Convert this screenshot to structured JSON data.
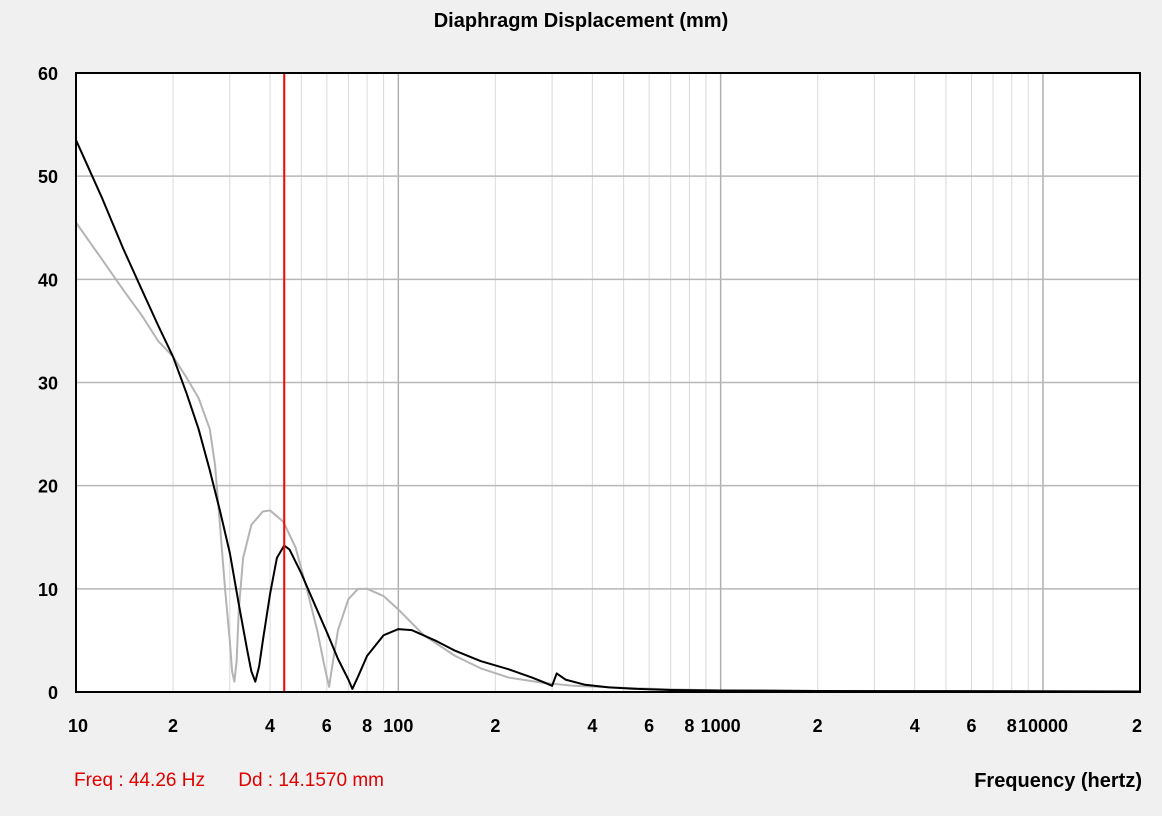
{
  "chart_data": {
    "type": "line",
    "title": "Diaphragm Displacement (mm)",
    "xlabel": "Frequency (hertz)",
    "ylabel": "",
    "x_scale": "log",
    "xlim": [
      10,
      20000
    ],
    "ylim": [
      0,
      60
    ],
    "grid": true,
    "y_ticks": [
      "0",
      "10",
      "20",
      "30",
      "40",
      "50",
      "60"
    ],
    "x_tick_labels": [
      {
        "value": 10,
        "label": "10"
      },
      {
        "value": 20,
        "label": "2"
      },
      {
        "value": 40,
        "label": "4"
      },
      {
        "value": 60,
        "label": "6"
      },
      {
        "value": 80,
        "label": "8"
      },
      {
        "value": 100,
        "label": "100"
      },
      {
        "value": 200,
        "label": "2"
      },
      {
        "value": 400,
        "label": "4"
      },
      {
        "value": 600,
        "label": "6"
      },
      {
        "value": 800,
        "label": "8"
      },
      {
        "value": 1000,
        "label": "1000"
      },
      {
        "value": 2000,
        "label": "2"
      },
      {
        "value": 4000,
        "label": "4"
      },
      {
        "value": 6000,
        "label": "6"
      },
      {
        "value": 8000,
        "label": "8"
      },
      {
        "value": 10000,
        "label": "10000"
      },
      {
        "value": 20000,
        "label": "2"
      }
    ],
    "series": [
      {
        "color": "#000000",
        "points": [
          [
            10,
            53.5
          ],
          [
            12,
            48
          ],
          [
            14,
            43
          ],
          [
            16,
            39
          ],
          [
            18,
            35.5
          ],
          [
            20,
            32.5
          ],
          [
            22,
            29
          ],
          [
            24,
            25.5
          ],
          [
            26,
            21.5
          ],
          [
            28,
            17.5
          ],
          [
            30,
            13.5
          ],
          [
            32,
            8.5
          ],
          [
            34,
            4
          ],
          [
            35,
            2
          ],
          [
            36,
            1
          ],
          [
            37,
            2.5
          ],
          [
            38,
            5
          ],
          [
            40,
            9.5
          ],
          [
            42,
            13
          ],
          [
            44.26,
            14.2
          ],
          [
            46,
            13.8
          ],
          [
            50,
            11.5
          ],
          [
            55,
            8.5
          ],
          [
            60,
            5.8
          ],
          [
            65,
            3.2
          ],
          [
            70,
            1.2
          ],
          [
            72,
            0.3
          ],
          [
            75,
            1.5
          ],
          [
            80,
            3.5
          ],
          [
            90,
            5.5
          ],
          [
            100,
            6.1
          ],
          [
            110,
            6.0
          ],
          [
            130,
            5.0
          ],
          [
            150,
            4.0
          ],
          [
            180,
            3.0
          ],
          [
            220,
            2.2
          ],
          [
            260,
            1.4
          ],
          [
            280,
            1.0
          ],
          [
            300,
            0.6
          ],
          [
            310,
            1.8
          ],
          [
            330,
            1.2
          ],
          [
            380,
            0.7
          ],
          [
            450,
            0.45
          ],
          [
            550,
            0.3
          ],
          [
            700,
            0.2
          ],
          [
            1000,
            0.15
          ],
          [
            2000,
            0.1
          ],
          [
            5000,
            0.08
          ],
          [
            20000,
            0.05
          ]
        ]
      },
      {
        "color": "#b4b4b4",
        "points": [
          [
            10,
            45.5
          ],
          [
            12,
            42
          ],
          [
            14,
            39
          ],
          [
            16,
            36.5
          ],
          [
            18,
            34
          ],
          [
            20,
            32.5
          ],
          [
            22,
            30.5
          ],
          [
            24,
            28.5
          ],
          [
            26,
            25.5
          ],
          [
            27,
            22
          ],
          [
            28,
            16
          ],
          [
            29,
            10
          ],
          [
            30,
            5
          ],
          [
            30.5,
            2
          ],
          [
            31,
            1
          ],
          [
            31.5,
            3
          ],
          [
            32,
            8
          ],
          [
            33,
            13
          ],
          [
            35,
            16.2
          ],
          [
            38,
            17.5
          ],
          [
            40,
            17.6
          ],
          [
            44,
            16.5
          ],
          [
            48,
            14
          ],
          [
            52,
            10
          ],
          [
            56,
            6
          ],
          [
            59,
            2.5
          ],
          [
            61,
            0.5
          ],
          [
            62,
            2
          ],
          [
            65,
            6
          ],
          [
            70,
            9
          ],
          [
            75,
            10
          ],
          [
            80,
            10
          ],
          [
            90,
            9.3
          ],
          [
            100,
            8
          ],
          [
            120,
            5.5
          ],
          [
            150,
            3.5
          ],
          [
            180,
            2.3
          ],
          [
            220,
            1.4
          ],
          [
            280,
            0.9
          ],
          [
            350,
            0.6
          ],
          [
            500,
            0.4
          ],
          [
            700,
            0.25
          ],
          [
            1000,
            0.15
          ],
          [
            2000,
            0.1
          ],
          [
            20000,
            0.05
          ]
        ]
      }
    ],
    "cursor": {
      "freq": 44.26,
      "color": "#ff0000"
    },
    "readout": {
      "freq_text": "Freq : 44.26 Hz",
      "dd_text": "Dd : 14.1570 mm"
    }
  }
}
